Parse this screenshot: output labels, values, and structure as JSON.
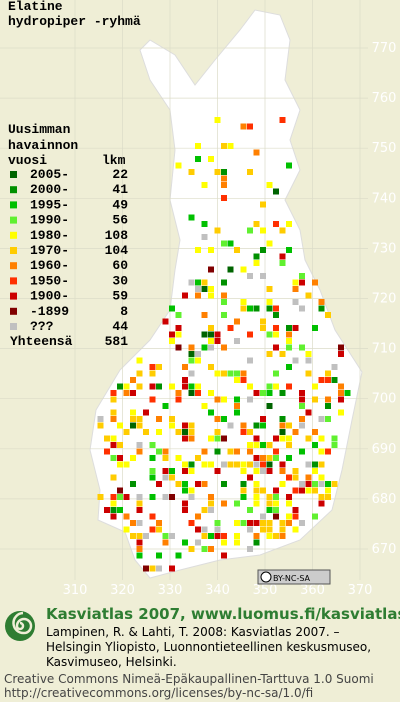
{
  "title": [
    "Elatine",
    "hydropiper -ryhmä"
  ],
  "legend": {
    "heading": [
      "Uusimman",
      "havainnon"
    ],
    "col_year": "vuosi",
    "col_count": "lkm",
    "items": [
      {
        "label": "2005-",
        "count": 22,
        "color": "#006400"
      },
      {
        "label": "2000-",
        "count": 41,
        "color": "#009000"
      },
      {
        "label": "1995-",
        "count": 49,
        "color": "#00c000"
      },
      {
        "label": "1990-",
        "count": 56,
        "color": "#60f030"
      },
      {
        "label": "1980-",
        "count": 108,
        "color": "#ffff00"
      },
      {
        "label": "1970-",
        "count": 104,
        "color": "#ffcc00"
      },
      {
        "label": "1960-",
        "count": 60,
        "color": "#ff8000"
      },
      {
        "label": "1950-",
        "count": 30,
        "color": "#ff3000"
      },
      {
        "label": "1900-",
        "count": 59,
        "color": "#cc0000"
      },
      {
        "label": "-1899",
        "count": 8,
        "color": "#800000"
      },
      {
        "label": "???",
        "count": 44,
        "color": "#c0c0c0"
      }
    ],
    "total": {
      "label": "Yhteensä",
      "count": 581
    }
  },
  "grid": {
    "x_labels": [
      310,
      320,
      330,
      340,
      350,
      360,
      370
    ],
    "y_labels": [
      770,
      760,
      750,
      740,
      730,
      720,
      710,
      700,
      690,
      680,
      670
    ]
  },
  "license_badge": "BY-NC-SA",
  "footer": {
    "title": "Kasviatlas 2007, www.luomus.fi/kasviatlas",
    "citation": [
      "Lampinen, R. & Lahti, T. 2008: Kasviatlas 2007. –",
      "Helsingin Yliopisto, Luonnontieteellinen keskusmuseo,",
      "Kasvimuseo, Helsinki."
    ],
    "license": [
      "Creative Commons Nimeä-Epäkaupallinen-Tarttuva 1.0 Suomi",
      "http://creativecommons.org/licenses/by-nc-sa/1.0/fi"
    ]
  }
}
